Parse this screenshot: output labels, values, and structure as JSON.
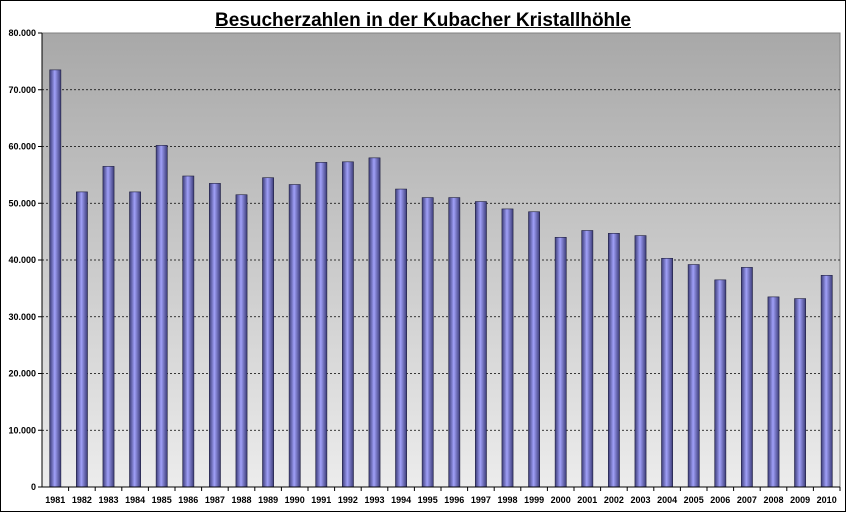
{
  "chart_data": {
    "type": "bar",
    "title": "Besucherzahlen in der Kubacher Kristallhöhle",
    "xlabel": "",
    "ylabel": "",
    "ylim": [
      0,
      80000
    ],
    "yticks": [
      0,
      10000,
      20000,
      30000,
      40000,
      50000,
      60000,
      70000,
      80000
    ],
    "ytick_labels": [
      "0",
      "10.000",
      "20.000",
      "30.000",
      "40.000",
      "50.000",
      "60.000",
      "70.000",
      "80.000"
    ],
    "grid": "horizontal dashed",
    "legend": "none",
    "categories": [
      "1981",
      "1982",
      "1983",
      "1984",
      "1985",
      "1986",
      "1987",
      "1988",
      "1989",
      "1990",
      "1991",
      "1992",
      "1993",
      "1994",
      "1995",
      "1996",
      "1997",
      "1998",
      "1999",
      "2000",
      "2001",
      "2002",
      "2003",
      "2004",
      "2005",
      "2006",
      "2007",
      "2008",
      "2009",
      "2010"
    ],
    "values": [
      73500,
      52000,
      56500,
      52000,
      60200,
      54800,
      53500,
      51500,
      54500,
      53300,
      57200,
      57300,
      58000,
      52500,
      51000,
      51000,
      50300,
      49000,
      48500,
      44000,
      45200,
      44700,
      44300,
      40300,
      39200,
      36500,
      38700,
      33500,
      33200,
      37300
    ],
    "colors": {
      "plot_background_top": "#a8a8a8",
      "plot_background_bottom": "#ececec",
      "bar_dark": "#3c3c78",
      "bar_light": "#a0a0f8"
    }
  }
}
